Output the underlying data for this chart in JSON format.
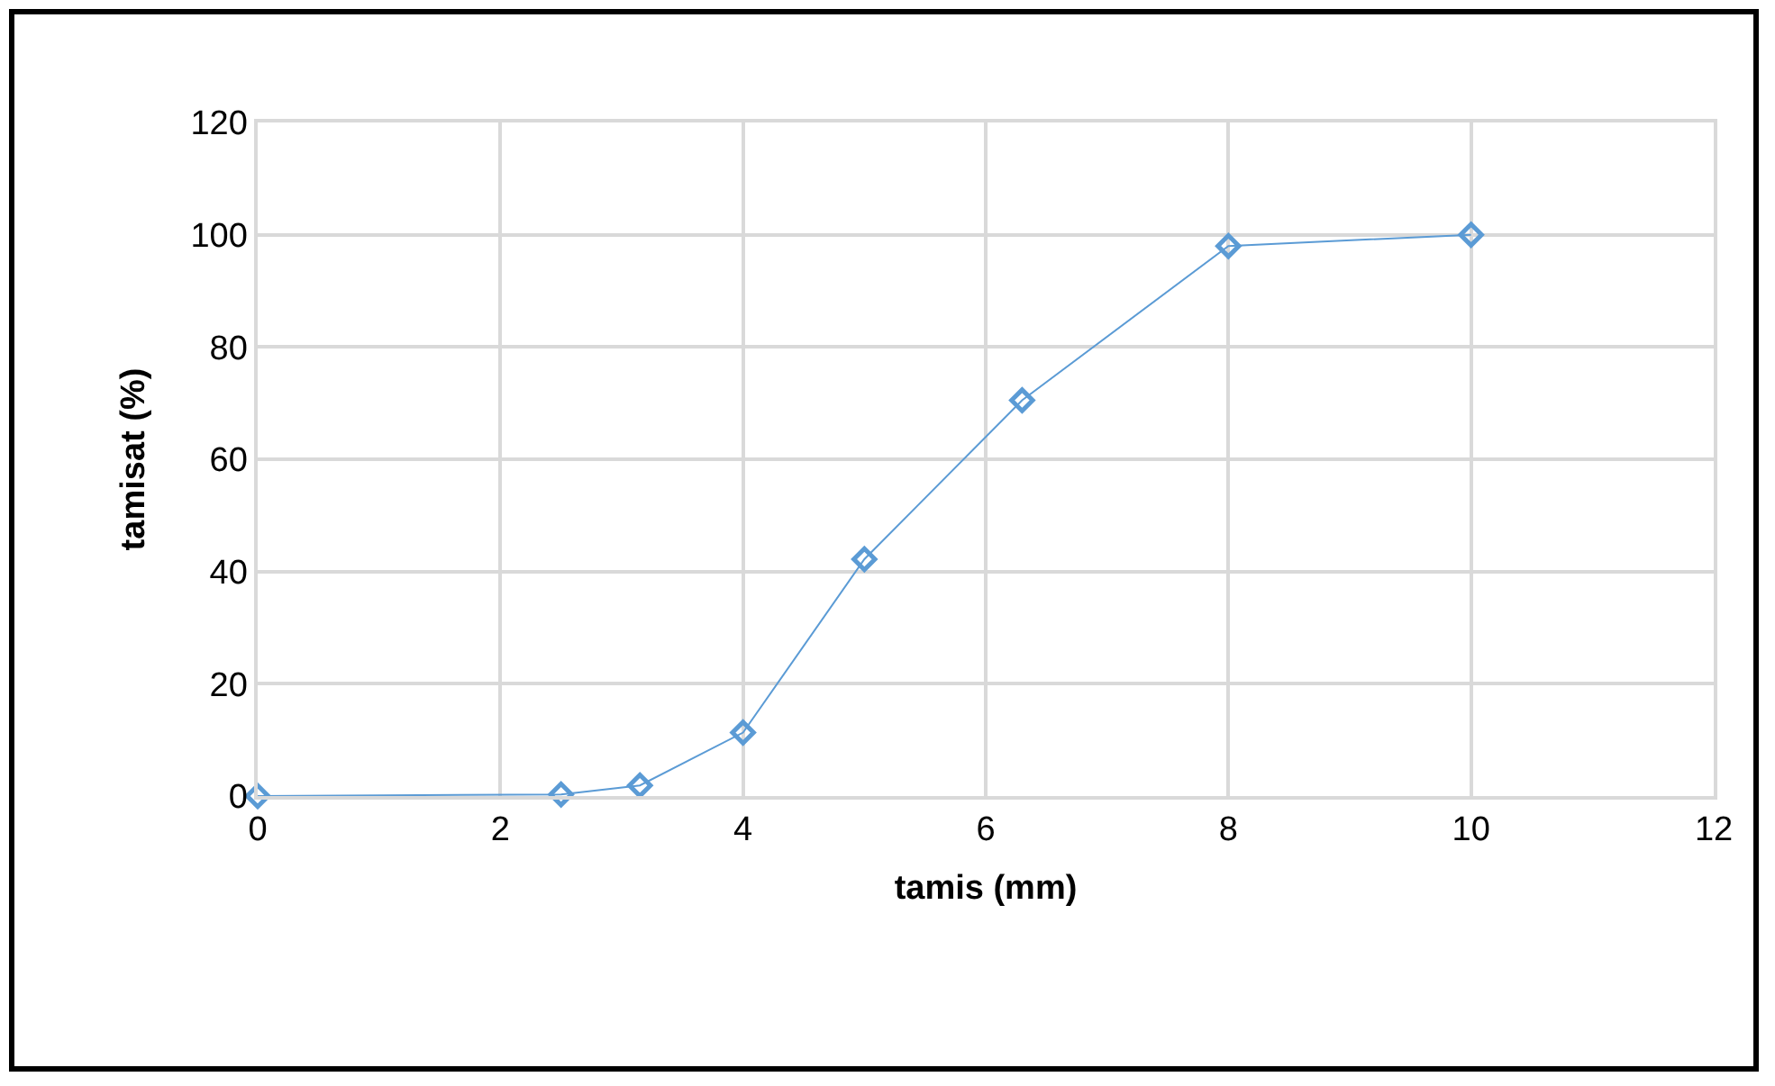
{
  "chart_data": {
    "type": "line",
    "xlabel": "tamis (mm)",
    "ylabel": "tamisat (%)",
    "x": [
      0,
      2.5,
      3.15,
      4,
      5,
      6.3,
      8,
      10
    ],
    "series": [
      {
        "color": "#5b9bd5",
        "values": [
          0,
          0.3,
          1.9,
          11.3,
          42.2,
          70.5,
          98,
          100
        ]
      }
    ],
    "xlim": [
      0,
      12
    ],
    "xticks": [
      0,
      2,
      4,
      6,
      8,
      10,
      12
    ],
    "ylim": [
      0,
      120
    ],
    "yticks": [
      0,
      20,
      40,
      60,
      80,
      100,
      120
    ],
    "grid": true,
    "marker": "diamond",
    "line_style": "solid"
  }
}
